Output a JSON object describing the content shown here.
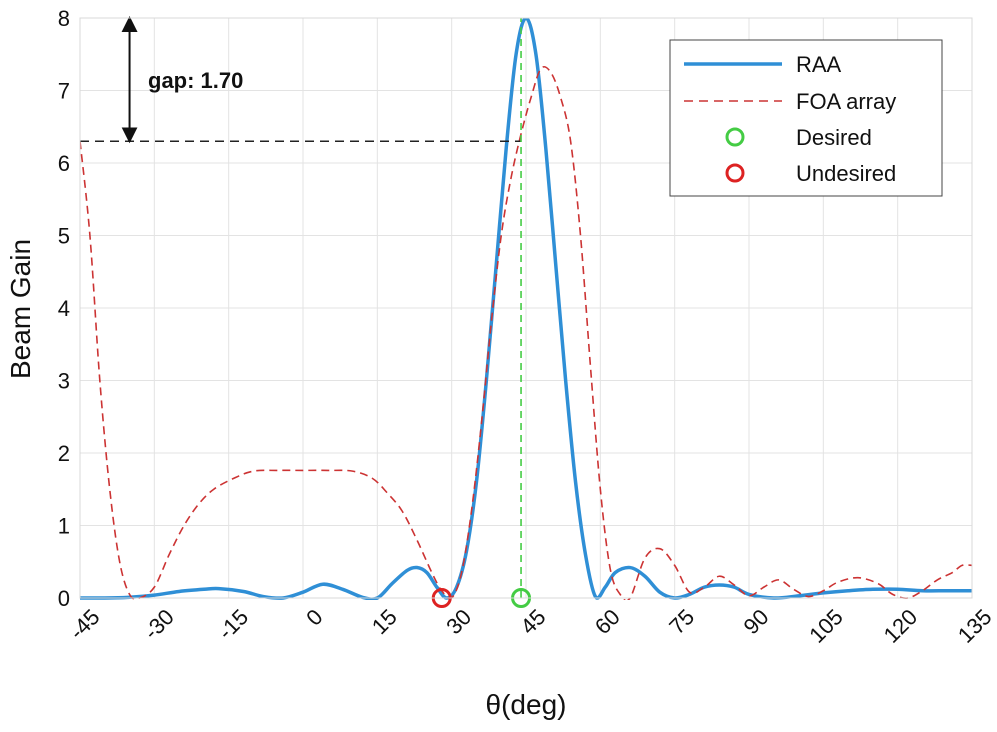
{
  "chart_data": {
    "type": "line",
    "title": "",
    "xlabel": "θ(deg)",
    "ylabel": "Beam Gain",
    "xlim": [
      -45,
      135
    ],
    "ylim": [
      0,
      8
    ],
    "xticks": [
      -45,
      -30,
      -15,
      0,
      15,
      30,
      45,
      60,
      75,
      90,
      105,
      120,
      135
    ],
    "yticks": [
      0,
      1,
      2,
      3,
      4,
      5,
      6,
      7,
      8
    ],
    "grid": true,
    "legend_position": "top-right",
    "colors": {
      "raa": "#2f8fd6",
      "foa": "#cc3333",
      "desired": "#44cc44",
      "undesired": "#dd2222",
      "annotation": "#111111"
    },
    "series": [
      {
        "name": "RAA",
        "style": "solid",
        "x": [
          -45,
          -40,
          -35,
          -30,
          -25,
          -20,
          -17,
          -12,
          -8,
          -4,
          0,
          4,
          8,
          12,
          15,
          18,
          21,
          23,
          25,
          27,
          29,
          31,
          33,
          35,
          37,
          39,
          41,
          43,
          45,
          47,
          49,
          51,
          53,
          55,
          57,
          59,
          61,
          63,
          66,
          69,
          72,
          75,
          78,
          81,
          84,
          87,
          90,
          95,
          100,
          105,
          110,
          115,
          120,
          125,
          130,
          135
        ],
        "y": [
          0.0,
          0.0,
          0.01,
          0.04,
          0.09,
          0.12,
          0.13,
          0.09,
          0.02,
          0.0,
          0.08,
          0.19,
          0.12,
          0.01,
          0.0,
          0.2,
          0.38,
          0.42,
          0.35,
          0.15,
          0.0,
          0.15,
          0.65,
          1.6,
          3.0,
          4.6,
          6.2,
          7.5,
          8.0,
          7.5,
          6.2,
          4.6,
          3.0,
          1.6,
          0.6,
          0.02,
          0.15,
          0.35,
          0.42,
          0.3,
          0.08,
          0.0,
          0.05,
          0.15,
          0.18,
          0.15,
          0.05,
          0.0,
          0.03,
          0.07,
          0.1,
          0.12,
          0.12,
          0.1,
          0.1,
          0.1
        ]
      },
      {
        "name": "FOA array",
        "style": "dashed",
        "x": [
          -45,
          -43,
          -41,
          -39,
          -37,
          -35,
          -33,
          -30,
          -27,
          -24,
          -21,
          -18,
          -14,
          -10,
          -5,
          0,
          5,
          10,
          14,
          17,
          20,
          23,
          26,
          28,
          30,
          32,
          34,
          36,
          38,
          40,
          42,
          44,
          46,
          48,
          50,
          52,
          54,
          56,
          58,
          60,
          62,
          64,
          66,
          69,
          72,
          75,
          78,
          81,
          84,
          87,
          90,
          93,
          96,
          99,
          102,
          105,
          108,
          112,
          116,
          119,
          122,
          125,
          128,
          131,
          133,
          135
        ],
        "y": [
          6.3,
          5.0,
          3.0,
          1.5,
          0.5,
          0.05,
          0.0,
          0.15,
          0.6,
          1.0,
          1.3,
          1.5,
          1.65,
          1.75,
          1.76,
          1.76,
          1.76,
          1.75,
          1.65,
          1.45,
          1.2,
          0.8,
          0.35,
          0.1,
          0.0,
          0.35,
          1.2,
          2.4,
          3.8,
          5.0,
          5.8,
          6.4,
          6.9,
          7.3,
          7.25,
          6.9,
          6.3,
          5.0,
          3.2,
          1.5,
          0.4,
          0.05,
          0.0,
          0.55,
          0.68,
          0.45,
          0.08,
          0.15,
          0.3,
          0.18,
          0.03,
          0.15,
          0.25,
          0.12,
          0.02,
          0.1,
          0.22,
          0.28,
          0.2,
          0.05,
          0.0,
          0.1,
          0.25,
          0.35,
          0.45,
          0.45
        ]
      }
    ],
    "markers": [
      {
        "name": "Desired",
        "x": 44,
        "y": 0
      },
      {
        "name": "Undesired",
        "x": 28,
        "y": 0
      }
    ],
    "annotations": {
      "gap_text": "gap: 1.70",
      "gap_value": 1.7,
      "arrow_x": -35,
      "arrow_y_from": 6.3,
      "arrow_y_to": 8.0,
      "reference_line_y": 6.3,
      "reference_line_x_from": -45,
      "reference_line_x_to": 44,
      "desired_vline_x": 44,
      "desired_vline_y_to": 8.0
    },
    "legend": [
      {
        "label": "RAA",
        "kind": "solid-line"
      },
      {
        "label": "FOA array",
        "kind": "dashed-line"
      },
      {
        "label": "Desired",
        "kind": "circle-green"
      },
      {
        "label": "Undesired",
        "kind": "circle-red"
      }
    ]
  }
}
